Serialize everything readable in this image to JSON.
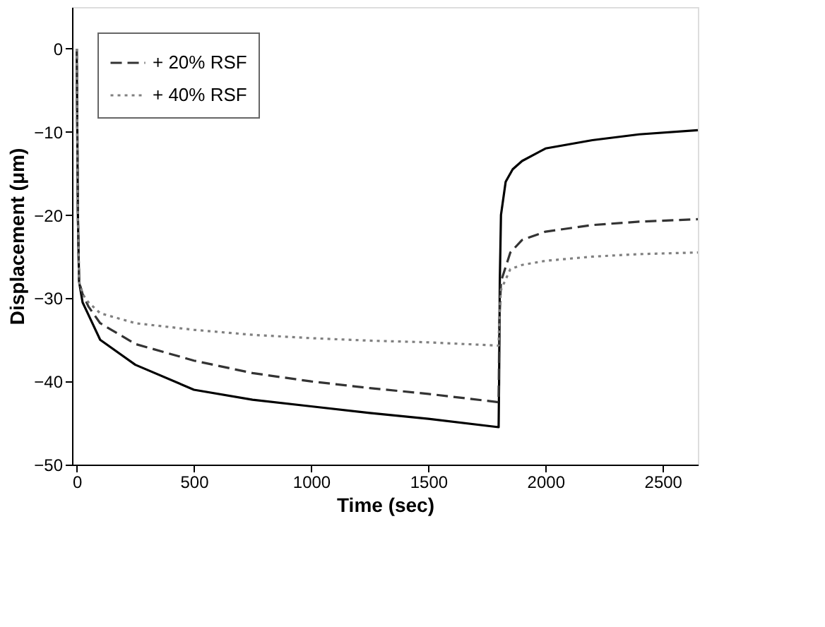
{
  "chart_data": {
    "type": "line",
    "xlabel": "Time (sec)",
    "ylabel": "Displacement (μm)",
    "xlim": [
      -20,
      2650
    ],
    "xticks": [
      0,
      500,
      1000,
      1500,
      2000,
      2500
    ],
    "ylim": [
      -50,
      5
    ],
    "yticks": [
      -50,
      -40,
      -30,
      -20,
      -10,
      0
    ],
    "grid": false,
    "legend": "top left",
    "marker": "none",
    "series": [
      {
        "color": "#000000",
        "line_style": "solid",
        "x": [
          0,
          5,
          10,
          25,
          50,
          100,
          250,
          500,
          750,
          1000,
          1250,
          1500,
          1800,
          1802,
          1805,
          1810,
          1830,
          1860,
          1900,
          2000,
          2200,
          2400,
          2650
        ],
        "values": [
          0,
          -20,
          -28,
          -30.5,
          -32,
          -35,
          -38,
          -41,
          -42.2,
          -43,
          -43.8,
          -44.5,
          -45.5,
          -40,
          -28,
          -20,
          -16,
          -14.5,
          -13.5,
          -12,
          -11,
          -10.3,
          -9.8
        ]
      },
      {
        "name": "+ 20% RSF",
        "color": "#333333",
        "line_style": "dashed",
        "x": [
          0,
          5,
          10,
          25,
          50,
          100,
          250,
          500,
          750,
          1000,
          1250,
          1500,
          1800,
          1803,
          1810,
          1850,
          1900,
          2000,
          2200,
          2400,
          2650
        ],
        "values": [
          0,
          -20,
          -28,
          -29.5,
          -31,
          -33,
          -35.5,
          -37.5,
          -39,
          -40,
          -40.8,
          -41.5,
          -42.5,
          -33,
          -28,
          -24.5,
          -23,
          -22,
          -21.2,
          -20.8,
          -20.5
        ]
      },
      {
        "name": "+ 40% RSF",
        "color": "#808080",
        "line_style": "dotted",
        "x": [
          0,
          5,
          10,
          25,
          50,
          100,
          250,
          500,
          750,
          1000,
          1250,
          1500,
          1800,
          1803,
          1810,
          1850,
          1900,
          2000,
          2200,
          2400,
          2650
        ],
        "values": [
          0,
          -20,
          -28,
          -29.5,
          -30.5,
          -31.8,
          -33,
          -33.8,
          -34.4,
          -34.8,
          -35.1,
          -35.3,
          -35.7,
          -32,
          -29,
          -26.5,
          -26,
          -25.5,
          -25,
          -24.7,
          -24.5
        ]
      }
    ]
  }
}
